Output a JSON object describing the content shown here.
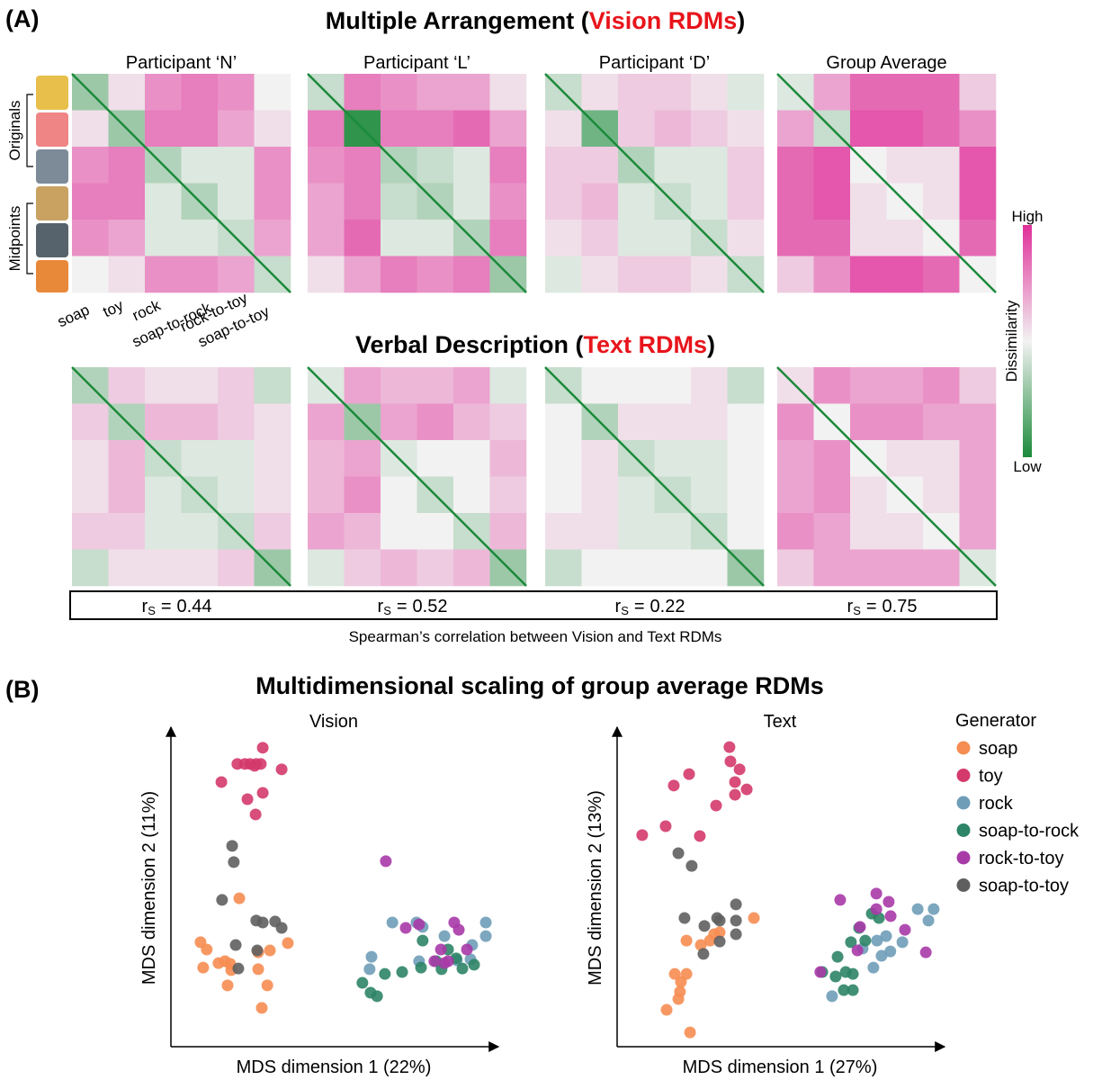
{
  "panel_a": {
    "label": "(A)",
    "vision_title": {
      "prefix": "Multiple Arrangement (",
      "highlight": "Vision RDMs",
      "suffix": ")"
    },
    "text_title": {
      "prefix": "Verbal Description (",
      "highlight": "Text RDMs",
      "suffix": ")"
    },
    "columns": [
      "Participant ‘N’",
      "Participant ‘L’",
      "Participant ‘D’",
      "Group Average"
    ],
    "row_labels": {
      "originals": "Originals",
      "midpoints": "Midpoints"
    },
    "categories": [
      "soap",
      "toy",
      "rock",
      "soap-to-rock",
      "rock-to-toy",
      "soap-to-toy"
    ],
    "colorbar": {
      "label": "Dissimilarity",
      "high": "High",
      "low": "Low",
      "range": [
        0,
        1
      ]
    },
    "vision_rdms": [
      [
        [
          0.3,
          0.55,
          0.75,
          0.8,
          0.75,
          0.5
        ],
        [
          0.55,
          0.3,
          0.8,
          0.8,
          0.7,
          0.55
        ],
        [
          0.75,
          0.8,
          0.35,
          0.45,
          0.45,
          0.75
        ],
        [
          0.8,
          0.8,
          0.45,
          0.35,
          0.45,
          0.75
        ],
        [
          0.75,
          0.7,
          0.45,
          0.45,
          0.4,
          0.7
        ],
        [
          0.5,
          0.55,
          0.75,
          0.75,
          0.7,
          0.4
        ]
      ],
      [
        [
          0.4,
          0.8,
          0.75,
          0.7,
          0.7,
          0.55
        ],
        [
          0.8,
          0.05,
          0.8,
          0.8,
          0.85,
          0.7
        ],
        [
          0.75,
          0.8,
          0.35,
          0.4,
          0.45,
          0.8
        ],
        [
          0.7,
          0.8,
          0.4,
          0.35,
          0.45,
          0.75
        ],
        [
          0.7,
          0.85,
          0.45,
          0.45,
          0.35,
          0.8
        ],
        [
          0.55,
          0.7,
          0.8,
          0.75,
          0.8,
          0.3
        ]
      ],
      [
        [
          0.4,
          0.55,
          0.6,
          0.6,
          0.55,
          0.45
        ],
        [
          0.55,
          0.2,
          0.6,
          0.65,
          0.6,
          0.55
        ],
        [
          0.6,
          0.6,
          0.35,
          0.45,
          0.45,
          0.6
        ],
        [
          0.6,
          0.65,
          0.45,
          0.4,
          0.45,
          0.6
        ],
        [
          0.55,
          0.6,
          0.45,
          0.45,
          0.4,
          0.55
        ],
        [
          0.45,
          0.55,
          0.6,
          0.6,
          0.55,
          0.4
        ]
      ],
      [
        [
          0.45,
          0.7,
          0.85,
          0.85,
          0.85,
          0.6
        ],
        [
          0.7,
          0.4,
          0.9,
          0.9,
          0.85,
          0.75
        ],
        [
          0.85,
          0.9,
          0.5,
          0.55,
          0.55,
          0.9
        ],
        [
          0.85,
          0.9,
          0.55,
          0.5,
          0.55,
          0.9
        ],
        [
          0.85,
          0.85,
          0.55,
          0.55,
          0.5,
          0.85
        ],
        [
          0.6,
          0.75,
          0.9,
          0.9,
          0.85,
          0.5
        ]
      ]
    ],
    "text_rdms": [
      [
        [
          0.35,
          0.6,
          0.55,
          0.55,
          0.6,
          0.4
        ],
        [
          0.6,
          0.35,
          0.65,
          0.65,
          0.6,
          0.55
        ],
        [
          0.55,
          0.65,
          0.4,
          0.45,
          0.45,
          0.55
        ],
        [
          0.55,
          0.65,
          0.45,
          0.4,
          0.45,
          0.55
        ],
        [
          0.6,
          0.6,
          0.45,
          0.45,
          0.4,
          0.6
        ],
        [
          0.4,
          0.55,
          0.55,
          0.55,
          0.6,
          0.3
        ]
      ],
      [
        [
          0.45,
          0.7,
          0.65,
          0.65,
          0.7,
          0.45
        ],
        [
          0.7,
          0.3,
          0.7,
          0.75,
          0.65,
          0.6
        ],
        [
          0.65,
          0.7,
          0.45,
          0.5,
          0.5,
          0.65
        ],
        [
          0.65,
          0.75,
          0.5,
          0.4,
          0.5,
          0.6
        ],
        [
          0.7,
          0.65,
          0.5,
          0.5,
          0.4,
          0.65
        ],
        [
          0.45,
          0.6,
          0.65,
          0.6,
          0.65,
          0.3
        ]
      ],
      [
        [
          0.4,
          0.5,
          0.5,
          0.5,
          0.55,
          0.4
        ],
        [
          0.5,
          0.35,
          0.55,
          0.55,
          0.55,
          0.5
        ],
        [
          0.5,
          0.55,
          0.4,
          0.45,
          0.45,
          0.5
        ],
        [
          0.5,
          0.55,
          0.45,
          0.4,
          0.45,
          0.5
        ],
        [
          0.55,
          0.55,
          0.45,
          0.45,
          0.4,
          0.5
        ],
        [
          0.4,
          0.5,
          0.5,
          0.5,
          0.5,
          0.3
        ]
      ],
      [
        [
          0.55,
          0.75,
          0.7,
          0.7,
          0.75,
          0.6
        ],
        [
          0.75,
          0.5,
          0.75,
          0.75,
          0.7,
          0.7
        ],
        [
          0.7,
          0.75,
          0.5,
          0.55,
          0.55,
          0.7
        ],
        [
          0.7,
          0.75,
          0.55,
          0.5,
          0.55,
          0.7
        ],
        [
          0.75,
          0.7,
          0.55,
          0.55,
          0.5,
          0.7
        ],
        [
          0.6,
          0.7,
          0.7,
          0.7,
          0.7,
          0.45
        ]
      ]
    ],
    "correlation": {
      "symbol": "r",
      "subscript": "S",
      "equals": "=",
      "values": [
        0.44,
        0.52,
        0.22,
        0.75
      ],
      "caption": "Spearman’s correlation between Vision and Text RDMs"
    }
  },
  "panel_b": {
    "label": "(B)",
    "title": "Multidimensional scaling of group average RDMs",
    "legend_title": "Generator"
  },
  "chart_data": [
    {
      "type": "scatter",
      "title": "Vision",
      "xlabel": "MDS dimension 1 (22%)",
      "ylabel": "MDS dimension  2 (11%)",
      "xlim": [
        0,
        100
      ],
      "ylim": [
        0,
        100
      ],
      "series": [
        {
          "color": "#f68d52",
          "x": [
            21.0,
            9.1,
            11.0,
            9.9,
            14.6,
            16.6,
            18.2,
            18.5,
            26.8,
            30.4,
            35.9,
            26.8,
            29.6,
            17.4,
            27.9
          ],
          "y": [
            46.7,
            32.9,
            30.6,
            24.9,
            26.3,
            26.9,
            26.1,
            24.1,
            29.7,
            30.3,
            32.6,
            24.4,
            19.3,
            19.3,
            12.2
          ]
        },
        {
          "color": "#d43a6c",
          "x": [
            15.5,
            20.4,
            22.7,
            24.3,
            26.2,
            27.6,
            28.2,
            25.7,
            34.0,
            28.2,
            23.5,
            26.0
          ],
          "y": [
            83.3,
            89.0,
            89.0,
            89.0,
            89.0,
            89.0,
            94.1,
            88.4,
            87.3,
            79.9,
            77.9,
            73.1
          ]
        },
        {
          "color": "#6f9db8",
          "x": [
            68.0,
            75.4,
            77.3,
            61.6,
            61.0,
            76.2,
            87.8,
            92.0,
            96.7,
            96.7,
            84.0,
            92.5
          ],
          "y": [
            39.1,
            39.1,
            37.7,
            28.3,
            24.4,
            26.9,
            27.2,
            27.5,
            34.8,
            39.1,
            34.8,
            32.0
          ]
        },
        {
          "color": "#2d8466",
          "x": [
            61.3,
            63.3,
            58.8,
            65.7,
            71.0,
            76.8,
            81.5,
            83.1,
            87.6,
            89.5,
            93.1,
            77.3,
            85.1
          ],
          "y": [
            17.0,
            15.9,
            20.1,
            22.9,
            23.5,
            24.9,
            26.9,
            24.4,
            27.8,
            24.6,
            25.8,
            33.4,
            30.6
          ]
        },
        {
          "color": "#a83aa8",
          "x": [
            66.0,
            72.1,
            76.2,
            87.0,
            88.4,
            82.9,
            85.1,
            90.9,
            80.9,
            84.0
          ],
          "y": [
            58.4,
            37.4,
            38.5,
            39.1,
            36.8,
            30.6,
            26.9,
            30.6,
            26.9,
            26.3
          ]
        },
        {
          "color": "#5f5f5f",
          "x": [
            19.3,
            18.8,
            15.7,
            26.2,
            28.2,
            32.0,
            34.0,
            19.9,
            26.5,
            20.7
          ],
          "y": [
            58.1,
            63.2,
            46.2,
            39.7,
            39.1,
            39.4,
            37.4,
            32.0,
            30.3,
            24.6
          ]
        }
      ]
    },
    {
      "type": "scatter",
      "title": "Text",
      "xlabel": "MDS dimension 1 (27%)",
      "ylabel": "MDS dimension  2 (13%)",
      "xlim": [
        0,
        100
      ],
      "ylim": [
        0,
        100
      ],
      "legend": "right",
      "series": [
        {
          "name": "soap",
          "color": "#f68d52",
          "x": [
            42.0,
            21.3,
            28.5,
            29.8,
            31.5,
            25.7,
            17.7,
            21.3,
            19.6,
            19.3,
            15.2,
            22.4,
            18.8
          ],
          "y": [
            40.5,
            33.4,
            33.4,
            35.4,
            36.0,
            32.0,
            22.9,
            22.9,
            20.4,
            17.3,
            11.6,
            4.5,
            15.0
          ]
        },
        {
          "name": "toy",
          "color": "#d43a6c",
          "x": [
            7.7,
            14.9,
            17.4,
            22.1,
            30.4,
            25.4,
            34.5,
            34.8,
            36.2,
            36.2,
            39.8,
            37.6
          ],
          "y": [
            66.6,
            69.4,
            82.2,
            85.8,
            75.9,
            66.3,
            94.3,
            89.8,
            83.3,
            79.3,
            81.0,
            87.3
          ]
        },
        {
          "name": "rock",
          "color": "#6f9db8",
          "x": [
            66.0,
            75.4,
            79.8,
            82.6,
            83.9,
            92.3,
            97.2,
            95.6,
            87.6,
            81.2,
            78.7
          ],
          "y": [
            15.9,
            30.9,
            33.4,
            34.8,
            30.0,
            43.3,
            43.3,
            39.7,
            32.9,
            28.6,
            24.9
          ]
        },
        {
          "name": "soap-to-rock",
          "color": "#2d8466",
          "x": [
            63.0,
            67.7,
            71.8,
            74.3,
            76.2,
            78.2,
            80.4,
            67.1,
            70.2,
            72.4,
            69.6,
            72.4
          ],
          "y": [
            23.5,
            28.3,
            32.9,
            37.4,
            33.4,
            41.9,
            40.5,
            22.1,
            23.5,
            22.9,
            17.8,
            17.8
          ]
        },
        {
          "name": "rock-to-toy",
          "color": "#a83aa8",
          "x": [
            62.4,
            68.5,
            79.6,
            79.6,
            84.0,
            74.6,
            73.8,
            88.4,
            94.8,
            83.4
          ],
          "y": [
            23.5,
            46.2,
            48.2,
            43.3,
            41.1,
            37.7,
            30.3,
            36.8,
            29.7,
            45.6
          ]
        },
        {
          "name": "soap-to-toy",
          "color": "#5f5f5f",
          "x": [
            18.8,
            22.9,
            20.7,
            26.8,
            30.7,
            31.5,
            36.5,
            36.5,
            31.5,
            36.5,
            26.5
          ],
          "y": [
            60.9,
            56.9,
            40.5,
            38.0,
            40.5,
            39.7,
            44.8,
            39.7,
            33.1,
            35.4,
            29.2
          ]
        }
      ]
    }
  ]
}
